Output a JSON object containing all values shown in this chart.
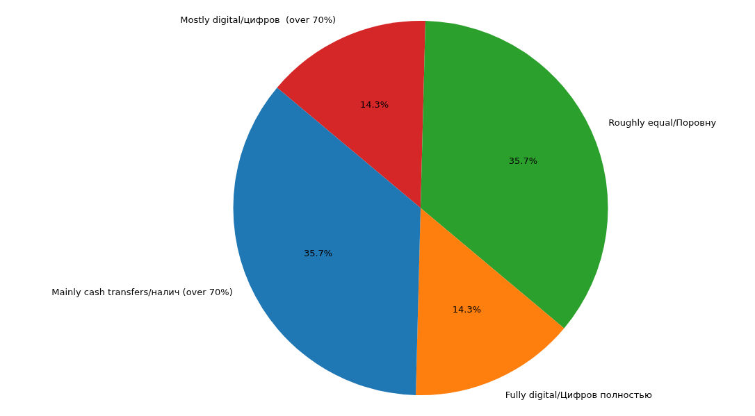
{
  "chart_data": {
    "type": "pie",
    "categories": [
      "Mainly cash transfers/налич (over 70%)",
      "Fully digital/Цифров полностью",
      "Roughly equal/Поровну",
      "Mostly digital/цифров  (over 70%)"
    ],
    "values": [
      35.7,
      14.3,
      35.7,
      14.3
    ],
    "colors": [
      "#1f77b4",
      "#ff7f0e",
      "#2ca02c",
      "#d62728"
    ],
    "value_labels": [
      "35.7%",
      "14.3%",
      "35.7%",
      "14.3%"
    ],
    "legend": false
  }
}
